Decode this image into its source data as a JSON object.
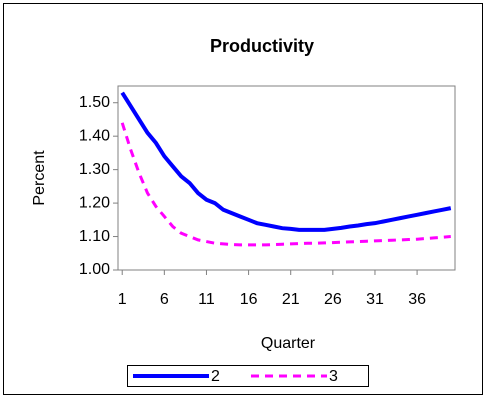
{
  "chart_data": {
    "type": "line",
    "title": "Productivity",
    "x_label": "Quarter",
    "y_label": "Percent",
    "x": [
      1,
      2,
      3,
      4,
      5,
      6,
      7,
      8,
      9,
      10,
      11,
      12,
      13,
      14,
      15,
      16,
      17,
      18,
      19,
      20,
      21,
      22,
      23,
      24,
      25,
      26,
      27,
      28,
      29,
      30,
      31,
      32,
      33,
      34,
      35,
      36,
      37,
      38,
      39,
      40
    ],
    "series": [
      {
        "name": "2",
        "color": "#0000ff",
        "dash": false,
        "values": [
          1.53,
          1.49,
          1.45,
          1.41,
          1.38,
          1.34,
          1.31,
          1.28,
          1.26,
          1.23,
          1.21,
          1.2,
          1.18,
          1.17,
          1.16,
          1.15,
          1.14,
          1.135,
          1.13,
          1.125,
          1.123,
          1.12,
          1.12,
          1.12,
          1.12,
          1.123,
          1.126,
          1.13,
          1.133,
          1.137,
          1.14,
          1.145,
          1.15,
          1.155,
          1.16,
          1.165,
          1.17,
          1.175,
          1.18,
          1.185
        ]
      },
      {
        "name": "3",
        "color": "#ff00ff",
        "dash": true,
        "values": [
          1.44,
          1.36,
          1.29,
          1.23,
          1.19,
          1.16,
          1.13,
          1.11,
          1.1,
          1.09,
          1.085,
          1.08,
          1.078,
          1.076,
          1.075,
          1.075,
          1.075,
          1.075,
          1.076,
          1.077,
          1.078,
          1.079,
          1.08,
          1.08,
          1.081,
          1.082,
          1.083,
          1.084,
          1.085,
          1.086,
          1.087,
          1.088,
          1.089,
          1.09,
          1.091,
          1.092,
          1.094,
          1.096,
          1.098,
          1.1
        ]
      }
    ],
    "xlim": [
      0.5,
      40.5
    ],
    "xticks": [
      1,
      6,
      11,
      16,
      21,
      26,
      31,
      36
    ],
    "ylim": [
      1.0,
      1.55
    ],
    "yticks": [
      {
        "value": 1.0,
        "label": "1.00"
      },
      {
        "value": 1.1,
        "label": "1.10"
      },
      {
        "value": 1.2,
        "label": "1.20"
      },
      {
        "value": 1.3,
        "label": "1.30"
      },
      {
        "value": 1.4,
        "label": "1.40"
      },
      {
        "value": 1.5,
        "label": "1.50"
      }
    ],
    "grid": false,
    "legend": "bottom"
  }
}
